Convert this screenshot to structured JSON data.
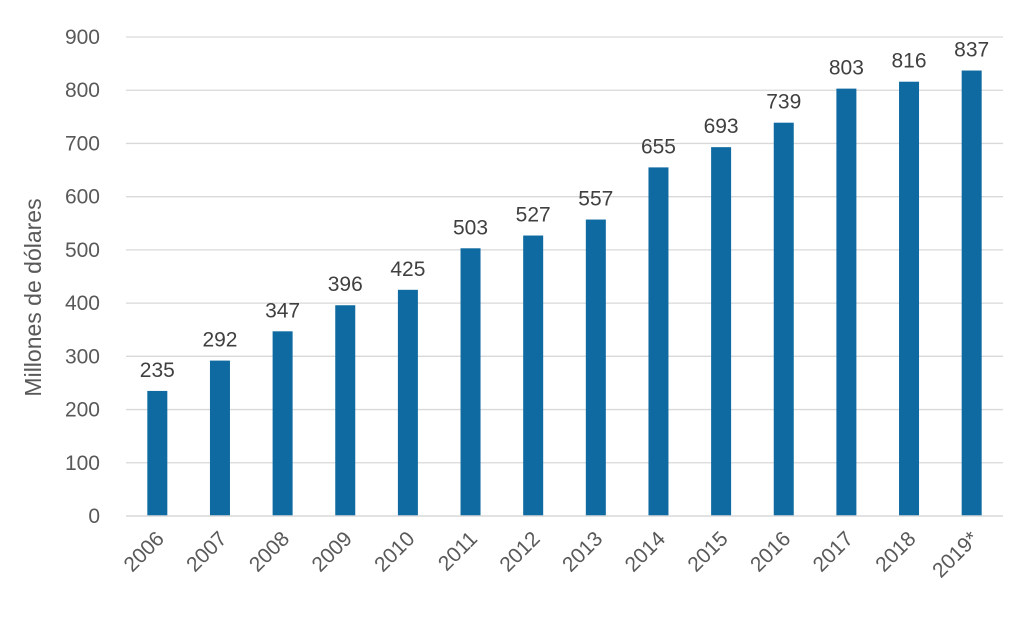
{
  "chart_data": {
    "type": "bar",
    "categories": [
      "2006",
      "2007",
      "2008",
      "2009",
      "2010",
      "2011",
      "2012",
      "2013",
      "2014",
      "2015",
      "2016",
      "2017",
      "2018",
      "2019*"
    ],
    "values": [
      235,
      292,
      347,
      396,
      425,
      503,
      527,
      557,
      655,
      693,
      739,
      803,
      816,
      837
    ],
    "data_labels": [
      "235",
      "292",
      "347",
      "396",
      "425",
      "503",
      "527",
      "557",
      "655",
      "693",
      "739",
      "803",
      "816",
      "837"
    ],
    "title": "",
    "xlabel": "",
    "ylabel": "Millones de dólares",
    "ylim": [
      0,
      900
    ],
    "yticks": [
      "0",
      "100",
      "200",
      "300",
      "400",
      "500",
      "600",
      "700",
      "800",
      "900"
    ],
    "grid": true,
    "legend": "none",
    "colors": {
      "bar": "#0e6aa0",
      "grid": "#d9d9d9",
      "text": "#595959",
      "label": "#404040"
    }
  }
}
